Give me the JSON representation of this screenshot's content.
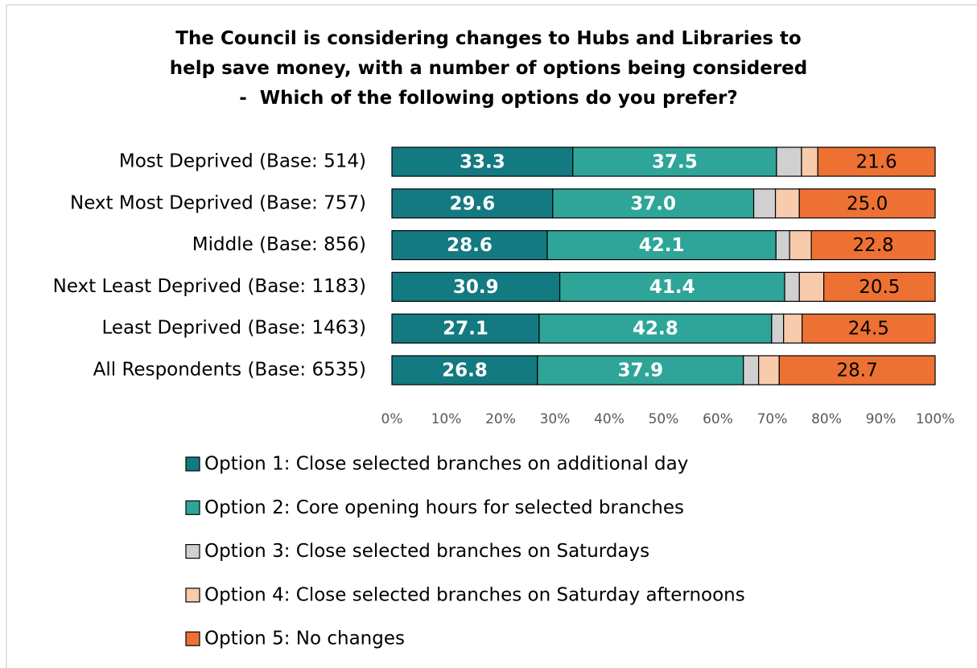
{
  "chart_data": {
    "type": "stacked_barh",
    "title": "The Council is considering changes to Hubs and Libraries to help save money, with a number of options being considered  -  Which of the following options do you prefer?",
    "categories": [
      "Most Deprived (Base: 514)",
      "Next Most Deprived (Base: 757)",
      "Middle (Base: 856)",
      "Next Least Deprived (Base: 1183)",
      "Least Deprived (Base: 1463)",
      "All Respondents (Base: 6535)"
    ],
    "series": [
      {
        "name": "Option 1: Close selected branches on additional day",
        "color": "#127a80",
        "label_color": "#ffffff",
        "values": [
          33.3,
          29.6,
          28.6,
          30.9,
          27.1,
          26.8
        ],
        "value_labels": [
          "33.3",
          "29.6",
          "28.6",
          "30.9",
          "27.1",
          "26.8"
        ]
      },
      {
        "name": "Option 2: Core opening hours for selected branches",
        "color": "#2ea598",
        "label_color": "#ffffff",
        "values": [
          37.5,
          37.0,
          42.1,
          41.4,
          42.8,
          37.9
        ],
        "value_labels": [
          "37.5",
          "37.0",
          "42.1",
          "41.4",
          "42.8",
          "37.9"
        ]
      },
      {
        "name": "Option 3: Close selected branches on Saturdays",
        "color": "#d0d0d0",
        "values": [
          4.6,
          4.0,
          2.5,
          2.7,
          2.2,
          2.8
        ]
      },
      {
        "name": "Option 4: Close selected branches on Saturday afternoons",
        "color": "#f8cbad",
        "values": [
          3.0,
          4.4,
          4.0,
          4.5,
          3.4,
          3.8
        ]
      },
      {
        "name": "Option 5: No changes",
        "color": "#ed7133",
        "label_color": "#000000",
        "values": [
          21.6,
          25.0,
          22.8,
          20.5,
          24.5,
          28.7
        ],
        "value_labels": [
          "21.6",
          "25.0",
          "22.8",
          "20.5",
          "24.5",
          "28.7"
        ]
      }
    ],
    "xlim": [
      0,
      100
    ],
    "xticks": [
      {
        "value": 0,
        "label": "0%"
      },
      {
        "value": 10,
        "label": "10%"
      },
      {
        "value": 20,
        "label": "20%"
      },
      {
        "value": 30,
        "label": "30%"
      },
      {
        "value": 40,
        "label": "40%"
      },
      {
        "value": 50,
        "label": "50%"
      },
      {
        "value": 60,
        "label": "60%"
      },
      {
        "value": 70,
        "label": "70%"
      },
      {
        "value": 80,
        "label": "80%"
      },
      {
        "value": 90,
        "label": "90%"
      },
      {
        "value": 100,
        "label": "100%"
      }
    ]
  }
}
